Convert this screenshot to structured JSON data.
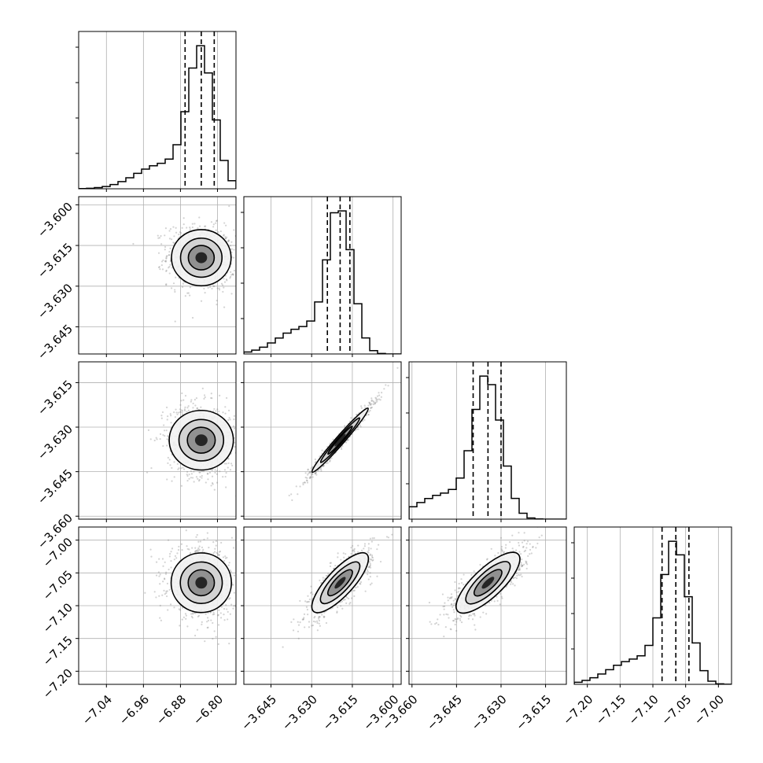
{
  "chart_data": {
    "type": "corner",
    "grid": true,
    "parameters": [
      {
        "range": [
          -7.1,
          -6.76
        ],
        "ticks": [
          -7.04,
          -6.96,
          -6.88,
          -6.8
        ],
        "tick_labels": [
          "−7.04",
          "−6.96",
          "−6.88",
          "−6.80"
        ],
        "quantiles": [
          -6.87,
          -6.835,
          -6.807
        ],
        "median": -6.835,
        "sigma": 0.028
      },
      {
        "range": [
          -3.655,
          -3.597
        ],
        "ticks": [
          -3.645,
          -3.63,
          -3.615,
          -3.6
        ],
        "tick_labels": [
          "−3.645",
          "−3.630",
          "−3.615",
          "−3.600"
        ],
        "quantiles": [
          -3.6242,
          -3.6195,
          -3.6159
        ],
        "median": -3.6195,
        "sigma": 0.0045
      },
      {
        "range": [
          -3.661,
          -3.608
        ],
        "ticks": [
          -3.66,
          -3.645,
          -3.63,
          -3.615
        ],
        "tick_labels": [
          "−3.660",
          "−3.645",
          "−3.630",
          "−3.615"
        ],
        "quantiles": [
          -3.6394,
          -3.6344,
          -3.63
        ],
        "median": -3.6344,
        "sigma": 0.0047
      },
      {
        "range": [
          -7.22,
          -6.98
        ],
        "ticks": [
          -7.2,
          -7.15,
          -7.1,
          -7.05,
          -7.0
        ],
        "tick_labels": [
          "−7.20",
          "−7.15",
          "−7.10",
          "−7.05",
          "−7.00"
        ],
        "quantiles": [
          -7.086,
          -7.065,
          -7.045
        ],
        "median": -7.065,
        "sigma": 0.02
      }
    ],
    "correlations": [
      {
        "row": 1,
        "col": 0,
        "rho": -0.1
      },
      {
        "row": 2,
        "col": 0,
        "rho": -0.1
      },
      {
        "row": 2,
        "col": 1,
        "rho": 0.98
      },
      {
        "row": 3,
        "col": 0,
        "rho": -0.1
      },
      {
        "row": 3,
        "col": 1,
        "rho": 0.8
      },
      {
        "row": 3,
        "col": 2,
        "rho": 0.78
      }
    ],
    "histogram": {
      "bins": 20,
      "style": "step",
      "quantile_line": "dashed"
    },
    "colors": {
      "line": "#000000",
      "grid": "#b0b0b0",
      "points": "#808080",
      "frame": "#000000"
    }
  }
}
